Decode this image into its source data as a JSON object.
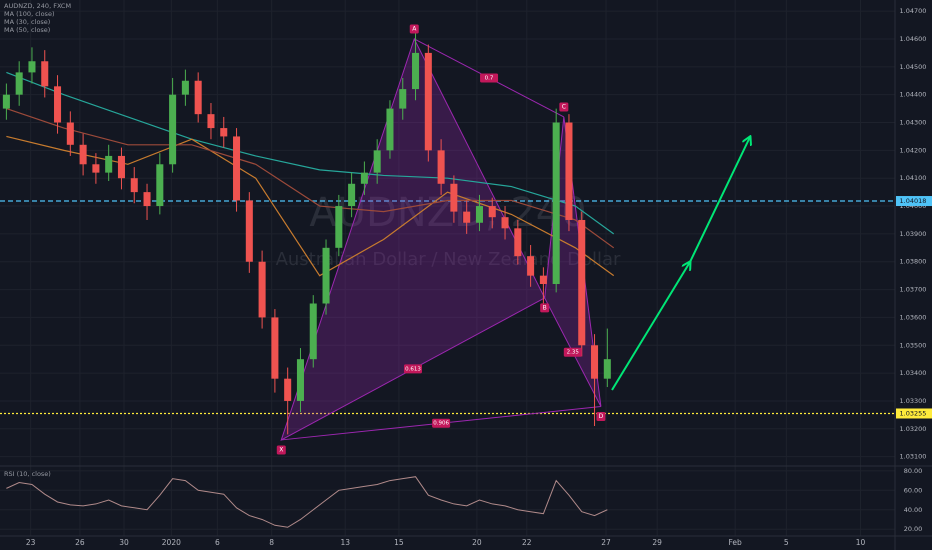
{
  "chart_data": [
    {
      "type": "candlestick",
      "title": "AUDNZD, 240, FXCM",
      "watermark": [
        "AUDNZD, 240",
        "Australian Dollar / New Zealand Dollar"
      ],
      "up_color": "#4caf50",
      "down_color": "#ef5350",
      "grid": true,
      "xlim": [
        0,
        70
      ],
      "ylim": [
        1.0307,
        1.0474
      ],
      "xticks": [
        {
          "value": 2.4,
          "label": "23"
        },
        {
          "value": 6.25,
          "label": "26"
        },
        {
          "value": 9.7,
          "label": "30"
        },
        {
          "value": 13.4,
          "label": "2020"
        },
        {
          "value": 17,
          "label": "6"
        },
        {
          "value": 21.25,
          "label": "8"
        },
        {
          "value": 27,
          "label": "13"
        },
        {
          "value": 31.2,
          "label": "15"
        },
        {
          "value": 37.3,
          "label": "20"
        },
        {
          "value": 41.2,
          "label": "22"
        },
        {
          "value": 47.4,
          "label": "27"
        },
        {
          "value": 51.4,
          "label": "29"
        },
        {
          "value": 57.5,
          "label": "Feb"
        },
        {
          "value": 61.5,
          "label": "5"
        },
        {
          "value": 67.3,
          "label": "10"
        }
      ],
      "yticks": [
        {
          "value": 1.031,
          "label": "1.03100"
        },
        {
          "value": 1.032,
          "label": "1.03200"
        },
        {
          "value": 1.033,
          "label": "1.03300"
        },
        {
          "value": 1.034,
          "label": "1.03400"
        },
        {
          "value": 1.035,
          "label": "1.03500"
        },
        {
          "value": 1.036,
          "label": "1.03600"
        },
        {
          "value": 1.037,
          "label": "1.03700"
        },
        {
          "value": 1.038,
          "label": "1.03800"
        },
        {
          "value": 1.039,
          "label": "1.03900"
        },
        {
          "value": 1.04,
          "label": "1.04000"
        },
        {
          "value": 1.041,
          "label": "1.04100"
        },
        {
          "value": 1.042,
          "label": "1.04200"
        },
        {
          "value": 1.043,
          "label": "1.04300"
        },
        {
          "value": 1.044,
          "label": "1.04400"
        },
        {
          "value": 1.045,
          "label": "1.04500"
        },
        {
          "value": 1.046,
          "label": "1.04600"
        },
        {
          "value": 1.047,
          "label": "1.04700"
        }
      ],
      "x": [
        0.5,
        1.5,
        2.5,
        3.5,
        4.5,
        5.5,
        6.5,
        7.5,
        8.5,
        9.5,
        10.5,
        11.5,
        12.5,
        13.5,
        14.5,
        15.5,
        16.5,
        17.5,
        18.5,
        19.5,
        20.5,
        21.5,
        22.5,
        23.5,
        24.5,
        25.5,
        26.5,
        27.5,
        28.5,
        29.5,
        30.5,
        31.5,
        32.5,
        33.5,
        34.5,
        35.5,
        36.5,
        37.5,
        38.5,
        39.5,
        40.5,
        41.5,
        42.5,
        43.5,
        44.5,
        45.5,
        46.5,
        47.5
      ],
      "open": [
        1.0435,
        1.044,
        1.0448,
        1.0452,
        1.0443,
        1.043,
        1.0422,
        1.0415,
        1.0412,
        1.0418,
        1.041,
        1.0405,
        1.04,
        1.0415,
        1.044,
        1.0445,
        1.0433,
        1.0428,
        1.0425,
        1.0402,
        1.038,
        1.036,
        1.0338,
        1.033,
        1.0345,
        1.0365,
        1.0385,
        1.04,
        1.0408,
        1.0412,
        1.042,
        1.0435,
        1.0442,
        1.0455,
        1.042,
        1.0408,
        1.0398,
        1.0394,
        1.04,
        1.0396,
        1.0392,
        1.0382,
        1.0375,
        1.0372,
        1.043,
        1.0395,
        1.035,
        1.0338
      ],
      "high": [
        1.0444,
        1.0452,
        1.0457,
        1.0456,
        1.0447,
        1.0434,
        1.0426,
        1.0419,
        1.0422,
        1.0421,
        1.0414,
        1.0408,
        1.0419,
        1.0446,
        1.0449,
        1.0448,
        1.0437,
        1.0432,
        1.0428,
        1.0405,
        1.0384,
        1.0363,
        1.0342,
        1.0349,
        1.0368,
        1.0388,
        1.0404,
        1.0412,
        1.0416,
        1.0424,
        1.0438,
        1.0446,
        1.0462,
        1.0458,
        1.0424,
        1.0411,
        1.0402,
        1.0404,
        1.0403,
        1.04,
        1.0395,
        1.0386,
        1.0378,
        1.0435,
        1.0433,
        1.0398,
        1.0354,
        1.0356
      ],
      "low": [
        1.0431,
        1.0436,
        1.0444,
        1.0439,
        1.0426,
        1.0418,
        1.0411,
        1.0408,
        1.0409,
        1.0406,
        1.0401,
        1.0395,
        1.0397,
        1.0412,
        1.0436,
        1.043,
        1.0424,
        1.0421,
        1.0398,
        1.0376,
        1.0356,
        1.0333,
        1.0318,
        1.0326,
        1.0342,
        1.0361,
        1.0382,
        1.0396,
        1.0404,
        1.0408,
        1.0417,
        1.0431,
        1.0438,
        1.0416,
        1.0404,
        1.0394,
        1.039,
        1.0391,
        1.0392,
        1.0388,
        1.0379,
        1.0371,
        1.0365,
        1.0369,
        1.0391,
        1.0346,
        1.0321,
        1.0335
      ],
      "close": [
        1.044,
        1.0448,
        1.0452,
        1.0443,
        1.043,
        1.0422,
        1.0415,
        1.0412,
        1.0418,
        1.041,
        1.0405,
        1.04,
        1.0415,
        1.044,
        1.0445,
        1.0433,
        1.0428,
        1.0425,
        1.0402,
        1.038,
        1.036,
        1.0338,
        1.033,
        1.0345,
        1.0365,
        1.0385,
        1.04,
        1.0408,
        1.0412,
        1.042,
        1.0435,
        1.0442,
        1.0455,
        1.042,
        1.0408,
        1.0398,
        1.0394,
        1.04,
        1.0396,
        1.0392,
        1.0382,
        1.0375,
        1.0372,
        1.043,
        1.0395,
        1.035,
        1.0338,
        1.0345
      ],
      "series": [
        {
          "name": "MA (100, close)",
          "color": "#26a69a",
          "x": [
            0.5,
            5,
            10,
            15,
            20,
            25,
            30,
            35,
            40,
            45,
            48
          ],
          "values": [
            1.0448,
            1.044,
            1.0432,
            1.0424,
            1.0418,
            1.0413,
            1.0411,
            1.041,
            1.0407,
            1.04,
            1.039
          ]
        },
        {
          "name": "MA (30, close)",
          "color": "#c77b2e",
          "x": [
            0.5,
            5,
            10,
            15,
            20,
            25,
            30,
            35,
            40,
            45,
            48
          ],
          "values": [
            1.0425,
            1.042,
            1.0415,
            1.0424,
            1.041,
            1.0375,
            1.0388,
            1.0405,
            1.0397,
            1.0385,
            1.0375
          ]
        },
        {
          "name": "MA (50, close)",
          "color": "#9c4a3a",
          "x": [
            0.5,
            5,
            10,
            15,
            20,
            25,
            30,
            35,
            40,
            45,
            48
          ],
          "values": [
            1.0435,
            1.0428,
            1.0422,
            1.0422,
            1.0415,
            1.04,
            1.0398,
            1.0402,
            1.0402,
            1.0395,
            1.0385
          ]
        }
      ],
      "pattern": {
        "color": "#9c27b0",
        "points": [
          {
            "label": "X",
            "x": 22,
            "y": 1.0316
          },
          {
            "label": "A",
            "x": 32.4,
            "y": 1.046
          },
          {
            "label": "B",
            "x": 42.6,
            "y": 1.0367
          },
          {
            "label": "C",
            "x": 44.1,
            "y": 1.0432
          },
          {
            "label": "D",
            "x": 47,
            "y": 1.0328
          }
        ],
        "ratios": [
          "0.7",
          "0.613",
          "0.906",
          "2.35"
        ]
      },
      "price_lines": [
        {
          "value": 1.04018,
          "color": "#4fc3f7"
        },
        {
          "value": 1.03255,
          "color": "#ffeb3b"
        }
      ]
    },
    {
      "type": "line",
      "title": "RSI (10, close)",
      "color": "#b08a8a",
      "ylim": [
        13,
        85
      ],
      "yticks": [
        {
          "value": 20,
          "label": "20.00"
        },
        {
          "value": 40,
          "label": "40.00"
        },
        {
          "value": 60,
          "label": "60.00"
        },
        {
          "value": 80,
          "label": "80.00"
        }
      ],
      "values": [
        62,
        68,
        66,
        56,
        48,
        45,
        44,
        46,
        50,
        44,
        42,
        40,
        55,
        72,
        70,
        60,
        58,
        56,
        42,
        34,
        30,
        24,
        22,
        30,
        40,
        50,
        60,
        62,
        64,
        66,
        70,
        72,
        74,
        55,
        50,
        46,
        44,
        50,
        46,
        44,
        40,
        38,
        36,
        70,
        55,
        38,
        34,
        40
      ]
    }
  ]
}
